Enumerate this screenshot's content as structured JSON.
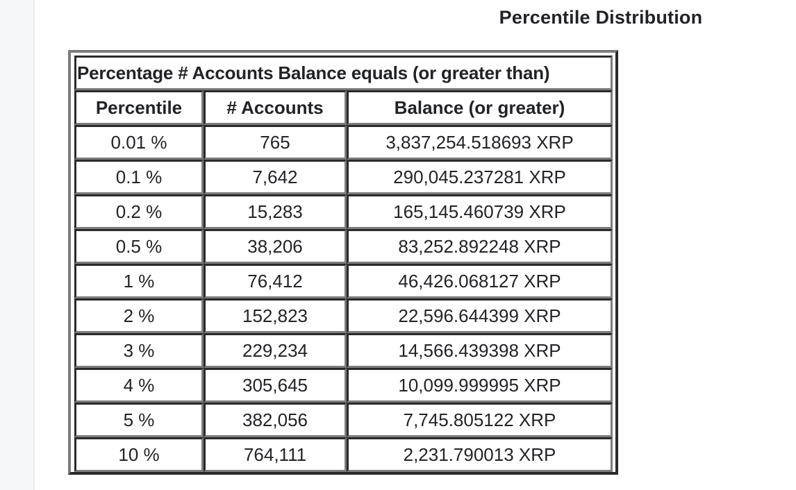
{
  "page": {
    "title": "Percentile Distribution"
  },
  "table": {
    "caption": "Percentage # Accounts Balance equals (or greater than)",
    "columns": [
      "Percentile",
      "# Accounts",
      "Balance (or greater)"
    ],
    "rows": [
      {
        "percentile": "0.01 %",
        "accounts": "765",
        "balance": "3,837,254.518693 XRP"
      },
      {
        "percentile": "0.1 %",
        "accounts": "7,642",
        "balance": "290,045.237281 XRP"
      },
      {
        "percentile": "0.2 %",
        "accounts": "15,283",
        "balance": "165,145.460739 XRP"
      },
      {
        "percentile": "0.5 %",
        "accounts": "38,206",
        "balance": "83,252.892248 XRP"
      },
      {
        "percentile": "1 %",
        "accounts": "76,412",
        "balance": "46,426.068127 XRP"
      },
      {
        "percentile": "2 %",
        "accounts": "152,823",
        "balance": "22,596.644399 XRP"
      },
      {
        "percentile": "3 %",
        "accounts": "229,234",
        "balance": "14,566.439398 XRP"
      },
      {
        "percentile": "4 %",
        "accounts": "305,645",
        "balance": "10,099.999995 XRP"
      },
      {
        "percentile": "5 %",
        "accounts": "382,056",
        "balance": "7,745.805122 XRP"
      },
      {
        "percentile": "10 %",
        "accounts": "764,111",
        "balance": "2,231.790013 XRP"
      }
    ]
  }
}
